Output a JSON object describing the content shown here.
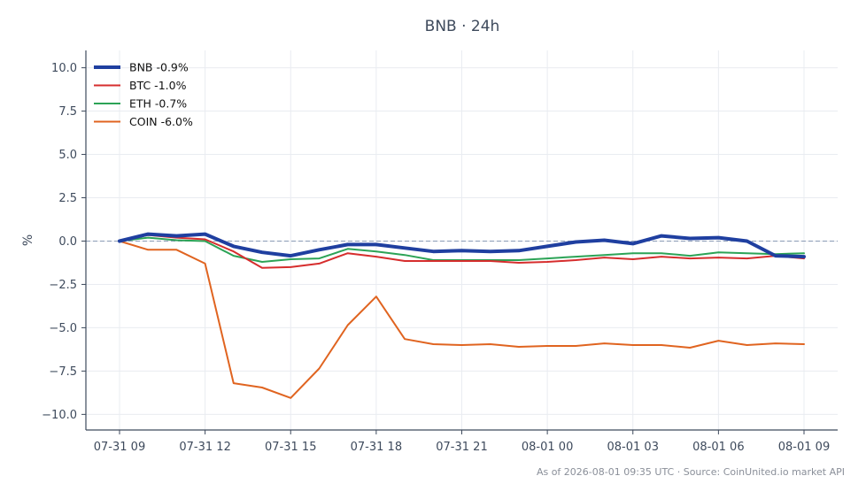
{
  "chart_data": {
    "type": "line",
    "title": "BNB · 24h",
    "ylabel": "%",
    "xlabel": "",
    "ylim": [
      -10.9,
      11.0
    ],
    "yticks": [
      -10.0,
      -7.5,
      -5.0,
      -2.5,
      0.0,
      2.5,
      5.0,
      7.5,
      10.0
    ],
    "ytick_labels": [
      "−10.0",
      "−7.5",
      "−5.0",
      "−2.5",
      "0.0",
      "2.5",
      "5.0",
      "7.5",
      "10.0"
    ],
    "x": [
      "07-31 09",
      "07-31 10",
      "07-31 11",
      "07-31 12",
      "07-31 13",
      "07-31 14",
      "07-31 15",
      "07-31 16",
      "07-31 17",
      "07-31 18",
      "07-31 19",
      "07-31 20",
      "07-31 21",
      "07-31 22",
      "07-31 23",
      "08-01 00",
      "08-01 01",
      "08-01 02",
      "08-01 03",
      "08-01 04",
      "08-01 05",
      "08-01 06",
      "08-01 07",
      "08-01 08",
      "08-01 09"
    ],
    "xtick_labels": [
      "07-31 09",
      "07-31 12",
      "07-31 15",
      "07-31 18",
      "07-31 21",
      "08-01 00",
      "08-01 03",
      "08-01 06",
      "08-01 09"
    ],
    "series": [
      {
        "name": "BNB -0.9%",
        "color": "#1f3fa0",
        "width": 4,
        "values": [
          0.0,
          0.4,
          0.3,
          0.4,
          -0.3,
          -0.65,
          -0.85,
          -0.5,
          -0.2,
          -0.2,
          -0.4,
          -0.6,
          -0.55,
          -0.6,
          -0.55,
          -0.3,
          -0.05,
          0.05,
          -0.15,
          0.3,
          0.15,
          0.2,
          0.0,
          -0.85,
          -0.9
        ]
      },
      {
        "name": "BTC -1.0%",
        "color": "#d62d2d",
        "width": 2,
        "values": [
          0.0,
          0.35,
          0.2,
          0.1,
          -0.6,
          -1.55,
          -1.5,
          -1.3,
          -0.7,
          -0.9,
          -1.15,
          -1.15,
          -1.15,
          -1.15,
          -1.25,
          -1.2,
          -1.1,
          -0.95,
          -1.05,
          -0.9,
          -1.0,
          -0.95,
          -1.0,
          -0.85,
          -1.0
        ]
      },
      {
        "name": "ETH -0.7%",
        "color": "#2ca356",
        "width": 2,
        "values": [
          0.0,
          0.2,
          0.05,
          0.0,
          -0.85,
          -1.2,
          -1.05,
          -1.0,
          -0.45,
          -0.6,
          -0.8,
          -1.1,
          -1.1,
          -1.1,
          -1.1,
          -1.0,
          -0.9,
          -0.8,
          -0.7,
          -0.7,
          -0.85,
          -0.65,
          -0.7,
          -0.75,
          -0.7
        ]
      },
      {
        "name": "COIN -6.0%",
        "color": "#e06420",
        "width": 2,
        "values": [
          0.0,
          -0.5,
          -0.5,
          -1.3,
          -8.2,
          -8.45,
          -9.05,
          -7.35,
          -4.85,
          -3.2,
          -5.65,
          -5.95,
          -6.0,
          -5.95,
          -6.1,
          -6.05,
          -6.05,
          -5.9,
          -6.0,
          -6.0,
          -6.15,
          -5.75,
          -6.0,
          -5.9,
          -5.95
        ]
      }
    ],
    "baseline": 0,
    "grid": true,
    "legend": "top-left",
    "footnote": "As of 2026-08-01 09:35 UTC · Source: CoinUnited.io market API"
  }
}
